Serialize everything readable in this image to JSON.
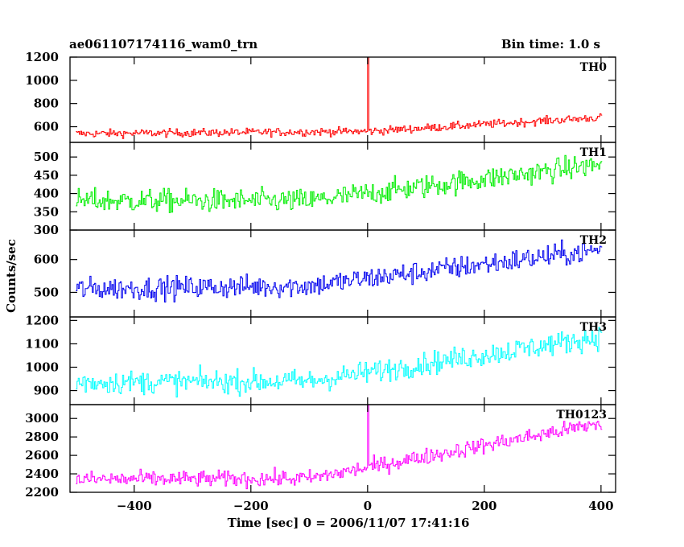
{
  "chart_data": {
    "type": "line",
    "title": "ae061107174116_wam0_trn",
    "bin_time_label": "Bin time: 1.0 s",
    "xlabel": "Time [sec] 0 = 2006/11/07 17:41:16",
    "ylabel": "Counts/sec",
    "xlim": [
      -510,
      425
    ],
    "x_ticks": [
      -400,
      -200,
      0,
      200,
      400
    ],
    "x_tick_labels": [
      "−400",
      "−200",
      "0",
      "200",
      "400"
    ],
    "sample_step": 2,
    "x_range": [
      -500,
      400
    ],
    "panels": [
      {
        "name": "TH0",
        "color": "#ff0000",
        "ylim": [
          465,
          1200
        ],
        "y_ticks": [
          600,
          800,
          1000,
          1200
        ],
        "y_tick_labels": [
          "600",
          "800",
          "1000",
          "1200"
        ],
        "baseline": [
          [
            -500,
            540
          ],
          [
            0,
            560
          ],
          [
            400,
            680
          ]
        ],
        "noise": 60,
        "spikes": [
          [
            0,
            1200
          ]
        ]
      },
      {
        "name": "TH1",
        "color": "#00ee00",
        "ylim": [
          300,
          540
        ],
        "y_ticks": [
          300,
          350,
          400,
          450,
          500
        ],
        "y_tick_labels": [
          "300",
          "350",
          "400",
          "450",
          "500"
        ],
        "baseline": [
          [
            -500,
            380
          ],
          [
            -100,
            380
          ],
          [
            400,
            480
          ]
        ],
        "noise": 55,
        "spikes": []
      },
      {
        "name": "TH2",
        "color": "#0000ee",
        "ylim": [
          425,
          690
        ],
        "y_ticks": [
          500,
          600
        ],
        "y_tick_labels": [
          "500",
          "600"
        ],
        "baseline": [
          [
            -500,
            510
          ],
          [
            -100,
            520
          ],
          [
            400,
            630
          ]
        ],
        "noise": 60,
        "spikes": []
      },
      {
        "name": "TH3",
        "color": "#00ffff",
        "ylim": [
          840,
          1215
        ],
        "y_ticks": [
          900,
          1000,
          1100,
          1200
        ],
        "y_tick_labels": [
          "900",
          "1000",
          "1100",
          "1200"
        ],
        "baseline": [
          [
            -500,
            935
          ],
          [
            -100,
            940
          ],
          [
            400,
            1130
          ]
        ],
        "noise": 85,
        "spikes": []
      },
      {
        "name": "TH0123",
        "color": "#ff00ff",
        "ylim": [
          2200,
          3150
        ],
        "y_ticks": [
          2200,
          2400,
          2600,
          2800,
          3000
        ],
        "y_tick_labels": [
          "2200",
          "2400",
          "2600",
          "2800",
          "3000"
        ],
        "baseline": [
          [
            -500,
            2340
          ],
          [
            -100,
            2350
          ],
          [
            400,
            2950
          ]
        ],
        "noise": 150,
        "spikes": [
          [
            0,
            3150
          ]
        ]
      }
    ]
  }
}
